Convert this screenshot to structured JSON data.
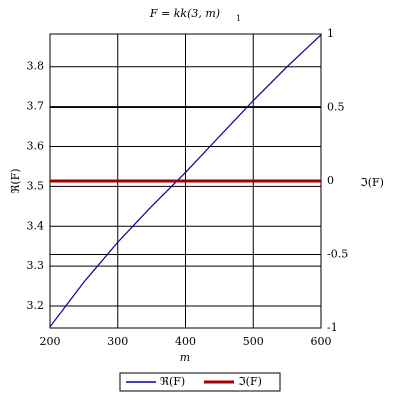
{
  "chart_data": {
    "type": "line",
    "title": "F = kk(3, m)",
    "title_subscript": "1",
    "x_label": "m",
    "y_label": "ℜ(F)",
    "y2_label": "ℑ(F)",
    "x": [
      200,
      250,
      300,
      350,
      400,
      450,
      500,
      550,
      600
    ],
    "series": [
      {
        "name": "ℜ(F)",
        "color": "#0000a0",
        "values": [
          3.148,
          3.26,
          3.36,
          3.45,
          3.535,
          3.625,
          3.715,
          3.8,
          3.88
        ]
      },
      {
        "name": "ℑ(F)",
        "color": "#a00000",
        "axis": "y2",
        "values": [
          0,
          0,
          0,
          0,
          0,
          0,
          0,
          0,
          0
        ]
      }
    ],
    "xlim": [
      200,
      600
    ],
    "xticks": [
      200,
      300,
      400,
      500,
      600
    ],
    "ylim": [
      3.145,
      3.882
    ],
    "yticks": [
      3.2,
      3.3,
      3.4,
      3.5,
      3.6,
      3.7,
      3.8
    ],
    "y2lim": [
      -1,
      1
    ],
    "y2ticks": [
      -1,
      -0.5,
      0,
      0.5,
      1
    ],
    "grid": true,
    "legend": "bottom"
  }
}
